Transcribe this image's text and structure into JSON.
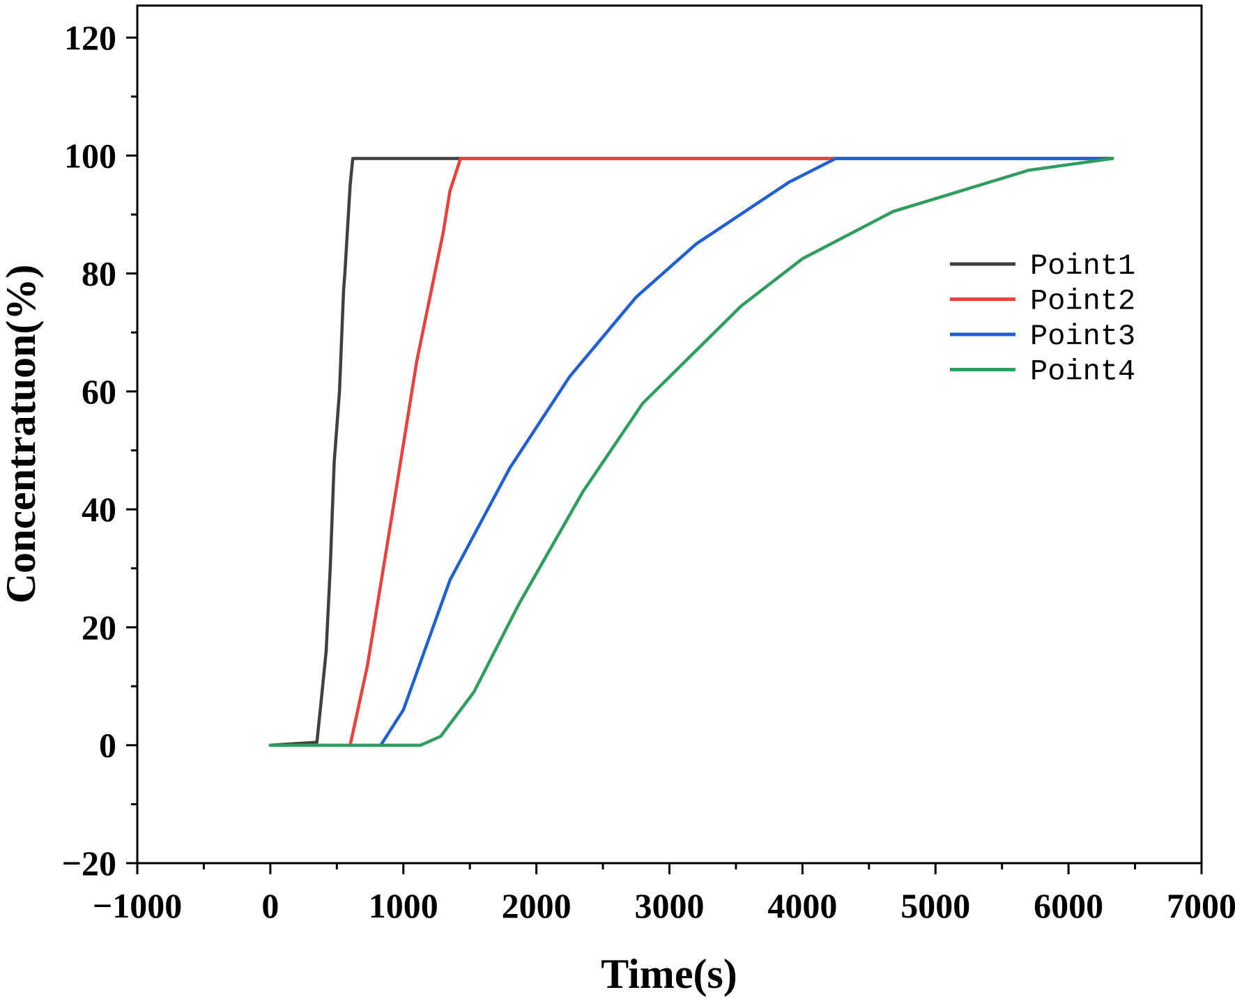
{
  "chart_data": {
    "type": "line",
    "xlabel": "Time(s)",
    "ylabel": "Concentratuon(%)",
    "xlim": [
      -1000,
      7000
    ],
    "ylim": [
      -20,
      120
    ],
    "xticks": [
      -1000,
      0,
      1000,
      2000,
      3000,
      4000,
      5000,
      6000,
      7000
    ],
    "xtick_labels": [
      "−1000",
      "0",
      "1000",
      "2000",
      "3000",
      "4000",
      "5000",
      "6000",
      "7000"
    ],
    "yticks": [
      -20,
      0,
      20,
      40,
      60,
      80,
      100,
      120
    ],
    "ytick_labels": [
      "−20",
      "0",
      "20",
      "40",
      "60",
      "80",
      "100",
      "120"
    ],
    "grid": false,
    "legend_position": "right",
    "series": [
      {
        "name": "Point1",
        "color": "#404040",
        "x": [
          0,
          350,
          380,
          420,
          450,
          480,
          520,
          550,
          560,
          600,
          620,
          1440,
          6330
        ],
        "y": [
          0,
          0.5,
          7,
          16,
          30,
          48,
          60,
          77,
          80,
          95,
          99.5,
          99.5,
          99.5
        ]
      },
      {
        "name": "Point2",
        "color": "#e8413e",
        "x": [
          0,
          600,
          730,
          900,
          1100,
          1300,
          1350,
          1430,
          6330
        ],
        "y": [
          0,
          0,
          13.5,
          37,
          65,
          87,
          94,
          99.5,
          99.5
        ]
      },
      {
        "name": "Point3",
        "color": "#2160d4",
        "x": [
          0,
          830,
          1000,
          1350,
          1800,
          2250,
          2750,
          3200,
          3600,
          3900,
          4250,
          6330
        ],
        "y": [
          0,
          0,
          6,
          28,
          47,
          62.5,
          76,
          85,
          91,
          95.5,
          99.5,
          99.5
        ]
      },
      {
        "name": "Point4",
        "color": "#2e9e5c",
        "x": [
          0,
          1130,
          1280,
          1530,
          1870,
          2350,
          2800,
          3540,
          4000,
          4680,
          5700,
          6330
        ],
        "y": [
          0,
          0,
          1.5,
          9,
          24,
          43,
          58,
          74.5,
          82.5,
          90.5,
          97.5,
          99.5
        ]
      }
    ]
  }
}
